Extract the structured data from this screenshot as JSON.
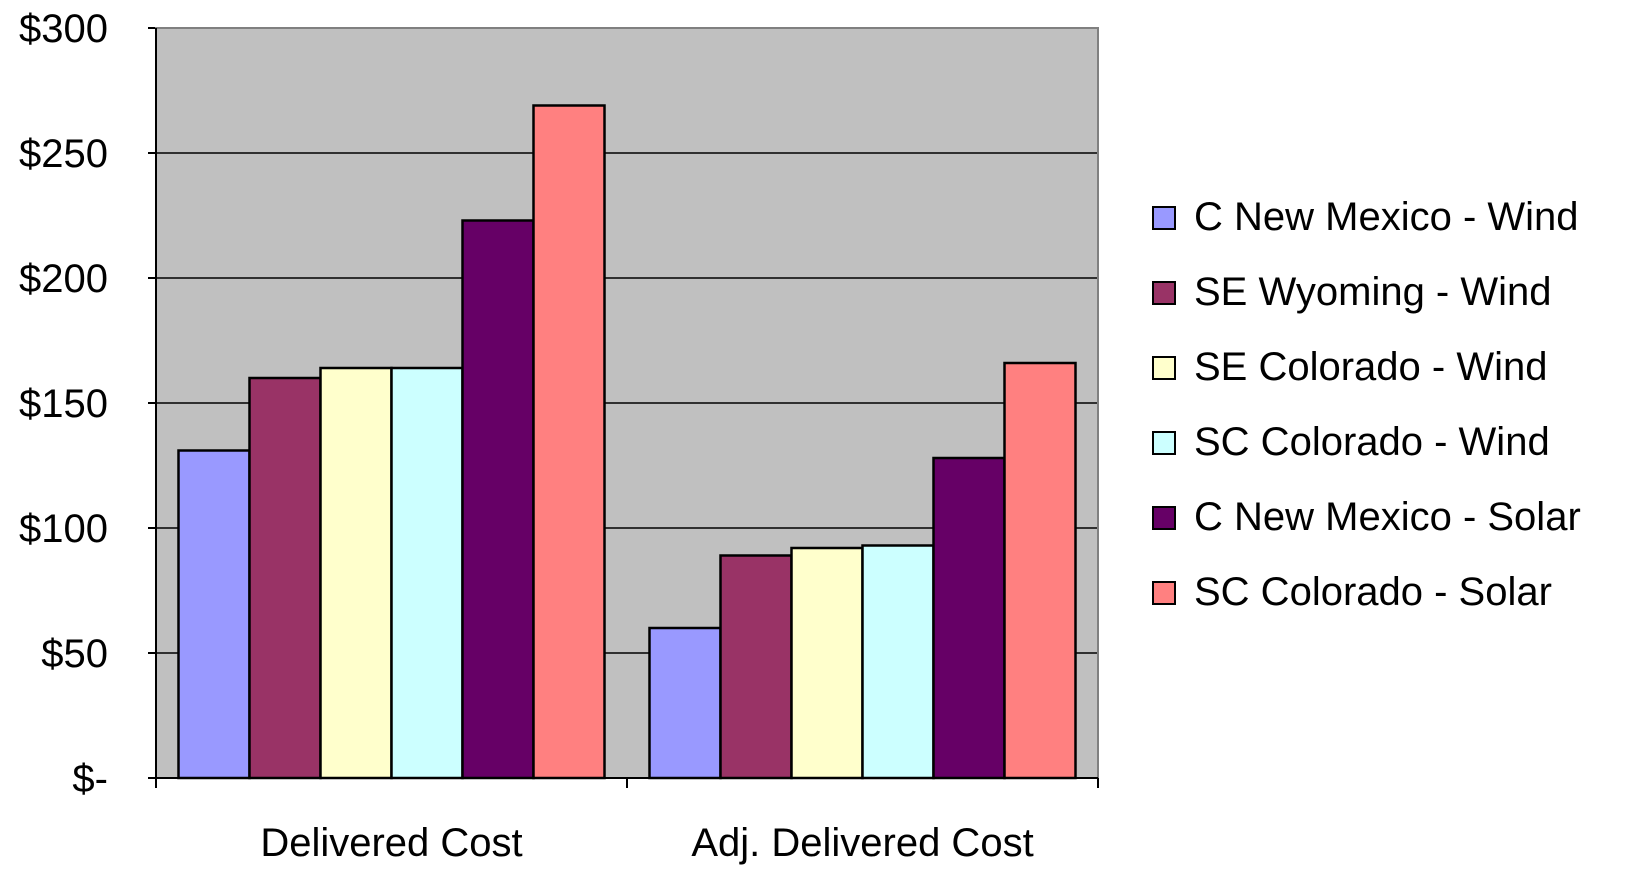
{
  "chart_data": {
    "type": "bar",
    "categories": [
      "Delivered Cost",
      "Adj. Delivered Cost"
    ],
    "series": [
      {
        "name": "C New Mexico - Wind",
        "color": "#9999FF",
        "values": [
          131,
          60
        ]
      },
      {
        "name": "SE Wyoming - Wind",
        "color": "#993366",
        "values": [
          160,
          89
        ]
      },
      {
        "name": "SE Colorado - Wind",
        "color": "#FFFFCC",
        "values": [
          164,
          92
        ]
      },
      {
        "name": "SC Colorado - Wind",
        "color": "#CCFFFF",
        "values": [
          164,
          93
        ]
      },
      {
        "name": "C New Mexico - Solar",
        "color": "#660066",
        "values": [
          223,
          128
        ]
      },
      {
        "name": "SC Colorado - Solar",
        "color": "#FF8080",
        "values": [
          269,
          166
        ]
      }
    ],
    "yticks": [
      {
        "value": 0,
        "label": "$-"
      },
      {
        "value": 50,
        "label": "$50"
      },
      {
        "value": 100,
        "label": "$100"
      },
      {
        "value": 150,
        "label": "$150"
      },
      {
        "value": 200,
        "label": "$200"
      },
      {
        "value": 250,
        "label": "$250"
      },
      {
        "value": 300,
        "label": "$300"
      }
    ],
    "ylim": [
      0,
      300
    ],
    "title": "",
    "xlabel": "",
    "ylabel": "",
    "grid": true,
    "plot_background": "#C0C0C0",
    "legend_position": "right"
  }
}
